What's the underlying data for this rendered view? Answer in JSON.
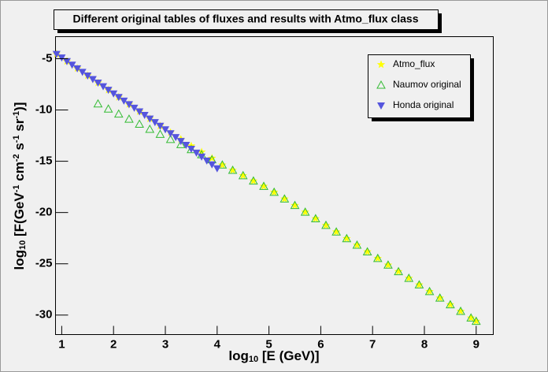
{
  "chart_data": {
    "type": "scatter",
    "title": "Different original tables of fluxes and results with Atmo_flux class",
    "xlabel": [
      "log",
      "10",
      " [E (GeV)]"
    ],
    "ylabel": [
      "log",
      "10",
      " [F(GeV",
      "-1",
      " cm",
      "-2",
      " s",
      "-1",
      " sr",
      "-1",
      ")]"
    ],
    "xlim": [
      0.88,
      9.33
    ],
    "ylim": [
      -31.9,
      -2.85
    ],
    "xticks": [
      1,
      2,
      3,
      4,
      5,
      6,
      7,
      8,
      9
    ],
    "yticks": [
      -5,
      -10,
      -15,
      -20,
      -25,
      -30
    ],
    "grid": false,
    "log_scale": false,
    "legend_position": "top-right",
    "series": [
      {
        "name": "Atmo_flux",
        "color": "#ffff00",
        "marker": "star",
        "x": [
          0.9,
          1.1,
          1.3,
          1.5,
          1.7,
          1.9,
          2.1,
          2.3,
          2.5,
          2.7,
          2.9,
          3.1,
          3.3,
          3.5,
          3.7,
          3.9,
          4.1,
          4.3,
          4.5,
          4.7,
          4.9,
          5.1,
          5.3,
          5.5,
          5.7,
          5.9,
          6.1,
          6.3,
          6.5,
          6.7,
          6.9,
          7.1,
          7.3,
          7.5,
          7.7,
          7.9,
          8.1,
          8.3,
          8.5,
          8.7,
          8.9,
          9.0
        ],
        "values": [
          -4.55,
          -5.25,
          -5.95,
          -6.65,
          -7.35,
          -8.05,
          -8.75,
          -9.45,
          -10.15,
          -10.85,
          -11.55,
          -12.2,
          -12.85,
          -13.5,
          -14.1,
          -14.7,
          -15.36,
          -15.88,
          -16.4,
          -16.92,
          -17.44,
          -18.02,
          -18.67,
          -19.31,
          -19.96,
          -20.6,
          -21.25,
          -21.89,
          -22.54,
          -23.18,
          -23.83,
          -24.47,
          -25.12,
          -25.76,
          -26.41,
          -27.05,
          -27.7,
          -28.34,
          -28.99,
          -29.63,
          -30.28,
          -30.6
        ]
      },
      {
        "name": "Naumov original",
        "color": "#33bb33",
        "marker": "open-triangle",
        "x": [
          1.7,
          1.9,
          2.1,
          2.3,
          2.5,
          2.7,
          2.9,
          3.1,
          3.3,
          3.5,
          3.7,
          3.9,
          4.1,
          4.3,
          4.5,
          4.7,
          4.9,
          5.1,
          5.3,
          5.5,
          5.7,
          5.9,
          6.1,
          6.3,
          6.5,
          6.7,
          6.9,
          7.1,
          7.3,
          7.5,
          7.7,
          7.9,
          8.1,
          8.3,
          8.5,
          8.7,
          8.9,
          9.0
        ],
        "values": [
          -9.4,
          -9.9,
          -10.39,
          -10.89,
          -11.38,
          -11.88,
          -12.37,
          -12.87,
          -13.37,
          -13.86,
          -14.36,
          -14.85,
          -15.36,
          -15.88,
          -16.4,
          -16.92,
          -17.44,
          -18.02,
          -18.67,
          -19.31,
          -19.96,
          -20.6,
          -21.25,
          -21.89,
          -22.54,
          -23.18,
          -23.83,
          -24.47,
          -25.12,
          -25.76,
          -26.41,
          -27.05,
          -27.7,
          -28.34,
          -28.99,
          -29.63,
          -30.28,
          -30.6
        ]
      },
      {
        "name": "Honda original",
        "color": "#5555dd",
        "marker": "down-triangle",
        "x": [
          0.9,
          1.0,
          1.1,
          1.2,
          1.3,
          1.4,
          1.5,
          1.6,
          1.7,
          1.8,
          1.9,
          2.0,
          2.1,
          2.2,
          2.3,
          2.4,
          2.5,
          2.6,
          2.7,
          2.8,
          2.9,
          3.0,
          3.1,
          3.2,
          3.3,
          3.4,
          3.5,
          3.6,
          3.7,
          3.8,
          3.9,
          4.0
        ],
        "values": [
          -4.55,
          -4.9,
          -5.25,
          -5.6,
          -5.95,
          -6.3,
          -6.65,
          -7.0,
          -7.35,
          -7.7,
          -8.05,
          -8.4,
          -8.75,
          -9.1,
          -9.45,
          -9.8,
          -10.15,
          -10.5,
          -10.85,
          -11.2,
          -11.55,
          -11.9,
          -12.28,
          -12.66,
          -13.04,
          -13.42,
          -13.8,
          -14.18,
          -14.56,
          -14.94,
          -15.32,
          -15.7
        ]
      }
    ]
  }
}
